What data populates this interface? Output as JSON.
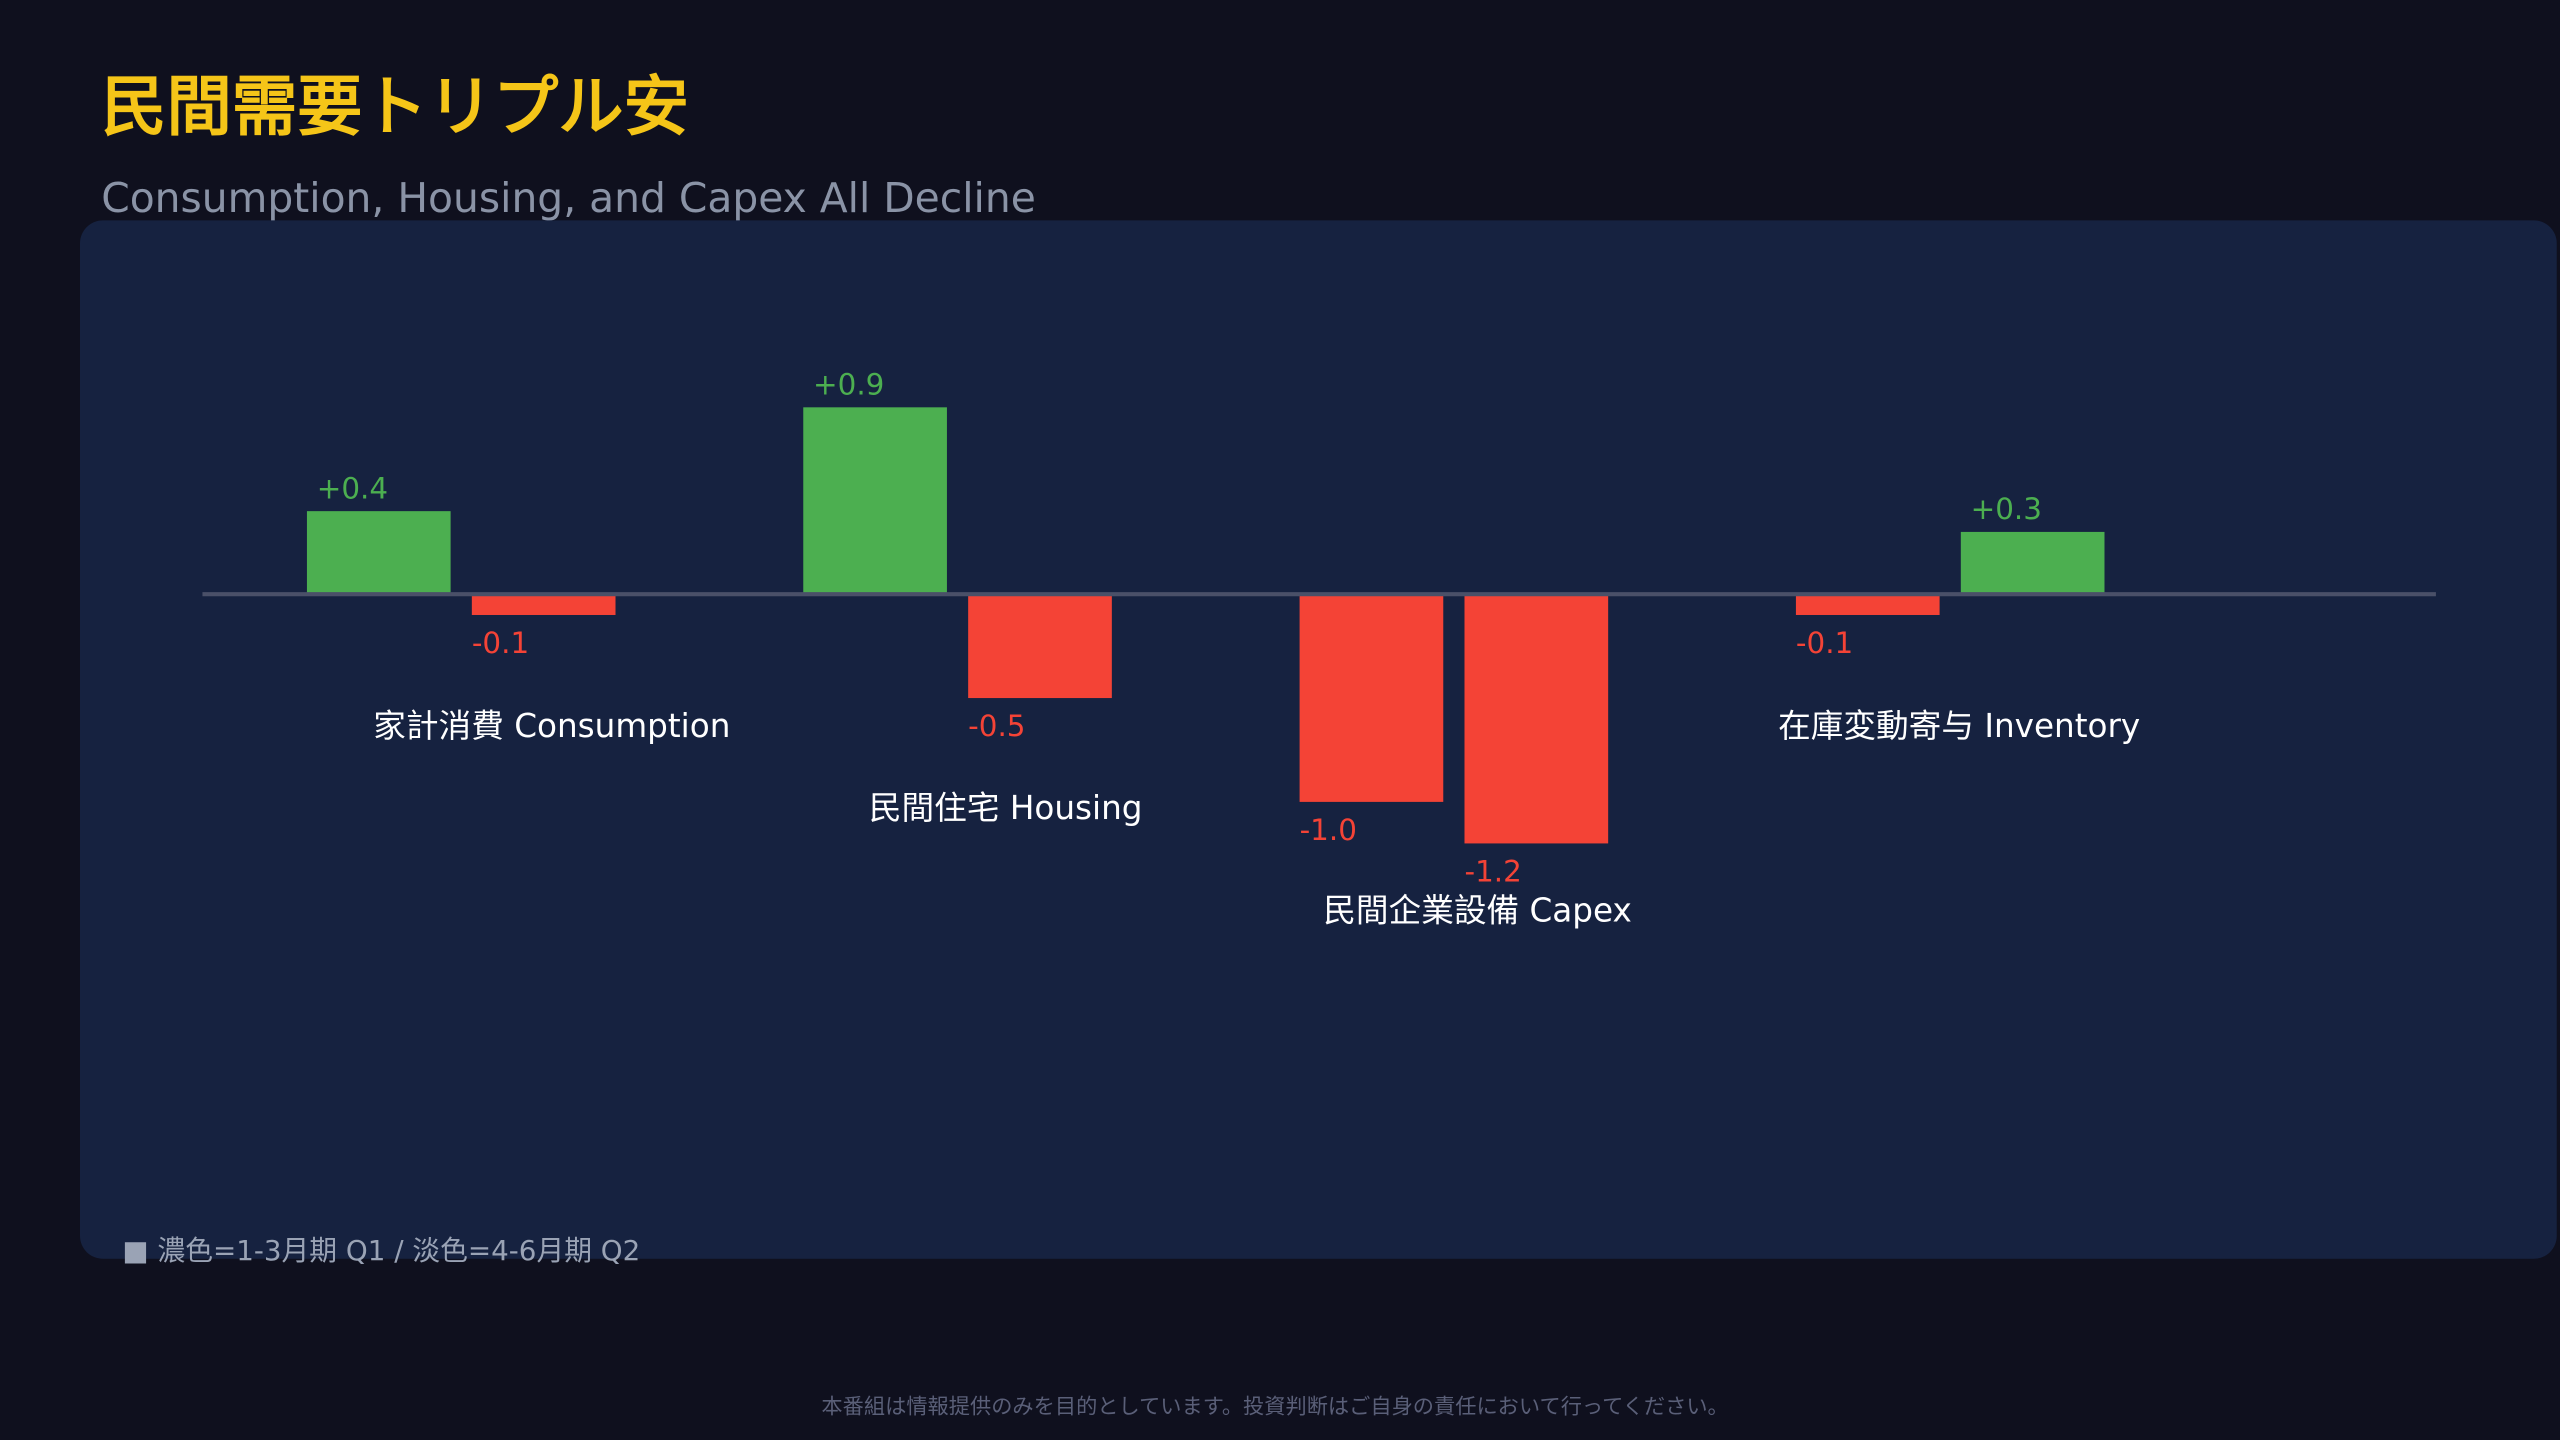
{
  "chart_data": {
    "type": "bar",
    "title": "民間需要トリプル安",
    "subtitle": "Consumption, Housing, and Capex All Decline",
    "categories": [
      "家計消費 Consumption",
      "民間住宅 Housing",
      "民間企業設備 Capex",
      "在庫変動寄与 Inventory"
    ],
    "series": [
      {
        "values": [
          0.4,
          0.9,
          -1.0,
          -0.1
        ],
        "value_labels": [
          "+0.4",
          "+0.9",
          "-1.0",
          "-0.1"
        ]
      },
      {
        "values": [
          -0.1,
          -0.5,
          -1.2,
          0.3
        ],
        "value_labels": [
          "-0.1",
          "-0.5",
          "-1.2",
          "+0.3"
        ]
      }
    ],
    "positive_color": "#4caf50",
    "negative_color": "#f44336",
    "ylim": [
      -3.2,
      1.8
    ],
    "note": "■ 濃色=1-3月期 Q1 / 淡色=4-6月期 Q2"
  },
  "footer": "本番組は情報提供のみを目的としています。投資判断はご自身の責任において行ってください。"
}
